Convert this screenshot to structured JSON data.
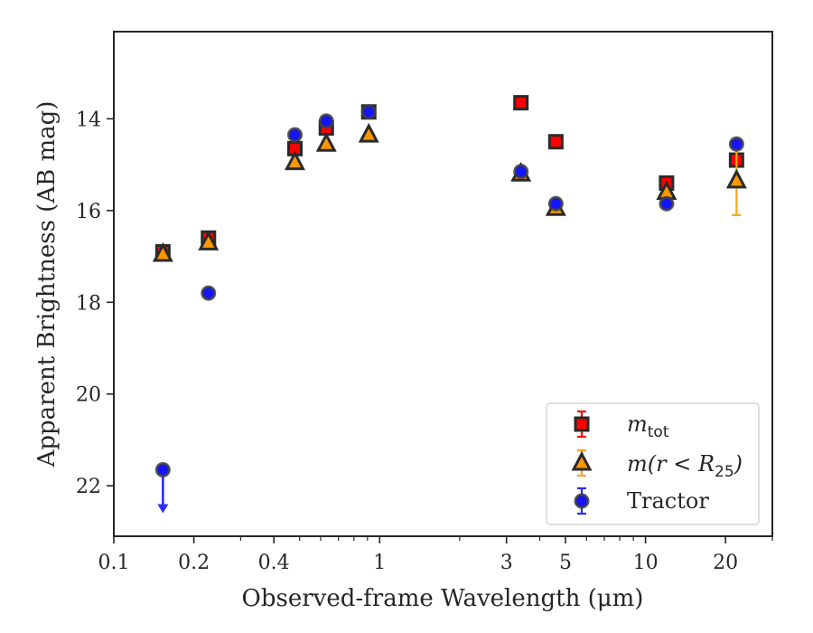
{
  "chart_data": {
    "type": "scatter",
    "title": "",
    "xlabel": "Observed-frame Wavelength (μm)",
    "ylabel": "Apparent Brightness (AB mag)",
    "x_scale": "log",
    "xlim": [
      0.1,
      30
    ],
    "ylim": [
      23.1,
      12.1
    ],
    "y_inverted": true,
    "x_ticks": [
      0.1,
      0.2,
      0.4,
      1,
      3,
      5,
      10,
      20
    ],
    "x_tick_labels": [
      "0.1",
      "0.2",
      "0.4",
      "1",
      "3",
      "5",
      "10",
      "20"
    ],
    "y_ticks": [
      14,
      16,
      18,
      20,
      22
    ],
    "y_tick_labels": [
      "14",
      "16",
      "18",
      "20",
      "22"
    ],
    "grid": false,
    "legend_position": "lower-right",
    "series": [
      {
        "name": "m_tot",
        "legend_main": "m",
        "legend_sub": "tot",
        "marker": "square",
        "face_color": "#ff0000",
        "edge_color": "#2a2a2a",
        "error_color": "#ff0000",
        "points": [
          {
            "x": 0.153,
            "y": 16.9,
            "err": 0.1
          },
          {
            "x": 0.227,
            "y": 16.6,
            "err": 0.1
          },
          {
            "x": 0.48,
            "y": 14.65,
            "err": 0.08
          },
          {
            "x": 0.63,
            "y": 14.2,
            "err": 0.08
          },
          {
            "x": 0.91,
            "y": 13.85,
            "err": 0.08
          },
          {
            "x": 3.4,
            "y": 13.65,
            "err": 0.05
          },
          {
            "x": 4.6,
            "y": 14.5,
            "err": 0.05
          },
          {
            "x": 12.0,
            "y": 15.4,
            "err": 0.05
          },
          {
            "x": 22.0,
            "y": 14.9,
            "err": 0.05
          }
        ]
      },
      {
        "name": "m(r < R_25)",
        "legend_main": "m(r < R",
        "legend_sub": "25",
        "legend_close": ")",
        "marker": "triangle",
        "face_color": "#ff9800",
        "edge_color": "#2a2a2a",
        "error_color": "#f5a623",
        "points": [
          {
            "x": 0.153,
            "y": 16.95,
            "err": 0.05
          },
          {
            "x": 0.227,
            "y": 16.7,
            "err": 0.05
          },
          {
            "x": 0.48,
            "y": 14.95,
            "err": 0.05
          },
          {
            "x": 0.63,
            "y": 14.55,
            "err": 0.05
          },
          {
            "x": 0.91,
            "y": 14.35,
            "err": 0.05
          },
          {
            "x": 3.4,
            "y": 15.2,
            "err": 0.05
          },
          {
            "x": 4.6,
            "y": 15.95,
            "err": 0.05
          },
          {
            "x": 12.0,
            "y": 15.6,
            "err": 0.05
          },
          {
            "x": 22.0,
            "y": 15.35,
            "err": 0.75
          }
        ]
      },
      {
        "name": "Tractor",
        "legend_main": "Tractor",
        "marker": "circle",
        "face_color": "#1414ff",
        "edge_color": "#404040",
        "error_color": "#2b2bff",
        "points": [
          {
            "x": 0.153,
            "y": 21.65,
            "err": 0.0,
            "upper_limit": true
          },
          {
            "x": 0.227,
            "y": 17.8,
            "err": 0.05
          },
          {
            "x": 0.48,
            "y": 14.35,
            "err": 0.05
          },
          {
            "x": 0.63,
            "y": 14.05,
            "err": 0.05
          },
          {
            "x": 0.91,
            "y": 13.85,
            "err": 0.05
          },
          {
            "x": 3.4,
            "y": 15.15,
            "err": 0.05
          },
          {
            "x": 4.6,
            "y": 15.85,
            "err": 0.05
          },
          {
            "x": 12.0,
            "y": 15.85,
            "err": 0.05
          },
          {
            "x": 22.0,
            "y": 14.55,
            "err": 0.05
          }
        ]
      }
    ]
  }
}
